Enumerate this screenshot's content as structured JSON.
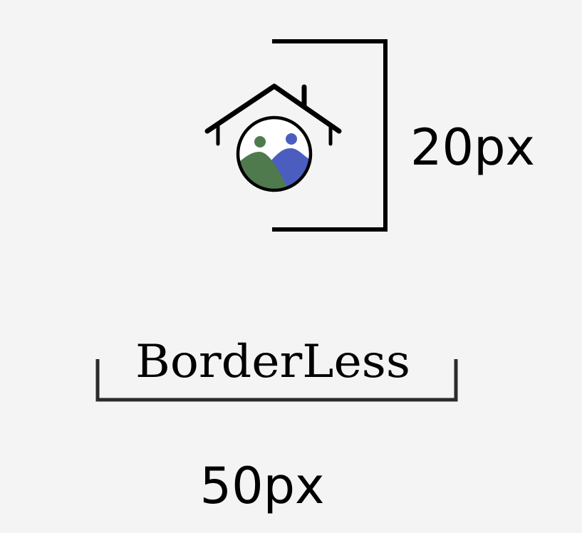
{
  "logo": {
    "icon_name": "house-landscape-icon",
    "colors": {
      "outline": "#000000",
      "green": "#4f7a4e",
      "blue": "#4b5ec0"
    }
  },
  "wordmark": {
    "text": "BorderLess"
  },
  "dimensions": {
    "icon_height_label": "20px",
    "wordmark_width_label": "50px"
  },
  "colors": {
    "background": "#f4f4f4",
    "bracket": "#000000",
    "wordmark_bracket": "#2b2b29"
  }
}
